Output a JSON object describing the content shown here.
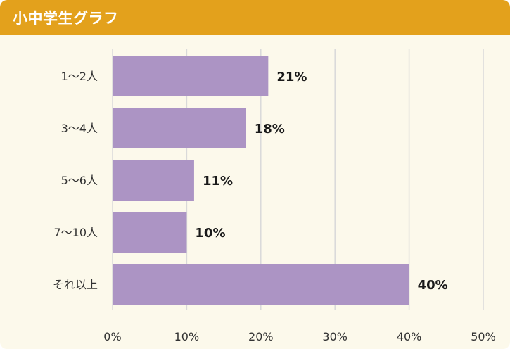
{
  "header": {
    "title": "小中学生グラフ"
  },
  "colors": {
    "header": "#e3a11c",
    "background": "#fcf9eb",
    "bar": "#ac94c4",
    "grid": "#d9d9d9"
  },
  "chart_data": {
    "type": "bar",
    "orientation": "horizontal",
    "categories": [
      "1〜2人",
      "3〜4人",
      "5〜6人",
      "7〜10人",
      "それ以上"
    ],
    "values": [
      21,
      18,
      11,
      10,
      40
    ],
    "value_labels": [
      "21%",
      "18%",
      "11%",
      "10%",
      "40%"
    ],
    "xticks": [
      "0%",
      "10%",
      "20%",
      "30%",
      "40%",
      "50%"
    ],
    "xlim": [
      0,
      50
    ],
    "grid": true,
    "title": ""
  }
}
